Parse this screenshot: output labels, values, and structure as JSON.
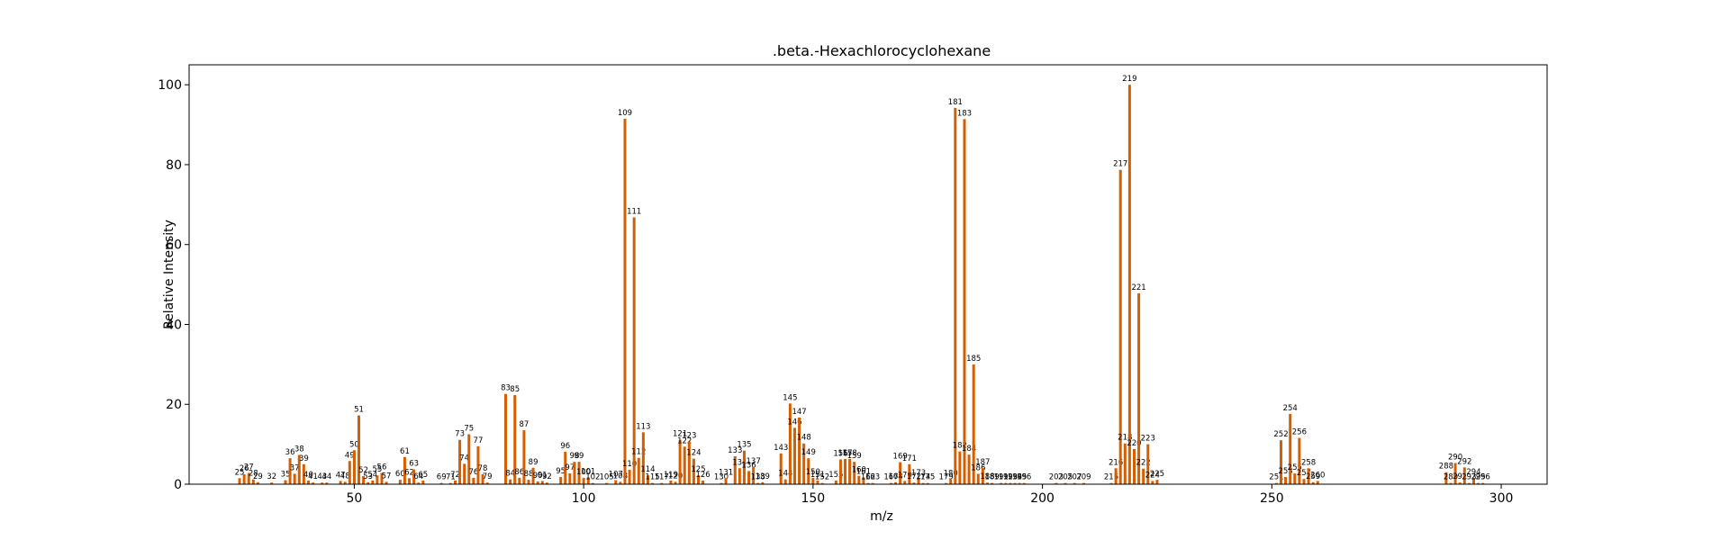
{
  "chart_data": {
    "type": "bar",
    "title": ".beta.-Hexachlorocyclohexane",
    "xlabel": "m/z",
    "ylabel": "Relative Intensity",
    "xlim": [
      14,
      310
    ],
    "ylim": [
      0,
      105
    ],
    "xticks": [
      50,
      100,
      150,
      200,
      250,
      300
    ],
    "yticks": [
      0,
      20,
      40,
      60,
      80,
      100
    ],
    "grid": false,
    "color": "#d55e00",
    "peaks": [
      {
        "mz": 25,
        "intensity": 1.5,
        "label": "25"
      },
      {
        "mz": 26,
        "intensity": 2.5,
        "label": "26"
      },
      {
        "mz": 27,
        "intensity": 2.8,
        "label": "27"
      },
      {
        "mz": 28,
        "intensity": 1.2,
        "label": "28"
      },
      {
        "mz": 29,
        "intensity": 0.5,
        "label": "29"
      },
      {
        "mz": 32,
        "intensity": 0.4,
        "label": "32"
      },
      {
        "mz": 35,
        "intensity": 1.0,
        "label": "35"
      },
      {
        "mz": 36,
        "intensity": 6.5,
        "label": "36"
      },
      {
        "mz": 37,
        "intensity": 2.6,
        "label": "37"
      },
      {
        "mz": 38,
        "intensity": 7.3,
        "label": "38"
      },
      {
        "mz": 39,
        "intensity": 5.0,
        "label": "39"
      },
      {
        "mz": 40,
        "intensity": 0.9,
        "label": "40"
      },
      {
        "mz": 41,
        "intensity": 0.4,
        "label": "41"
      },
      {
        "mz": 43,
        "intensity": 0.4,
        "label": "43"
      },
      {
        "mz": 44,
        "intensity": 0.4,
        "label": "44"
      },
      {
        "mz": 47,
        "intensity": 0.8,
        "label": "47"
      },
      {
        "mz": 48,
        "intensity": 0.6,
        "label": "48"
      },
      {
        "mz": 49,
        "intensity": 5.8,
        "label": "49"
      },
      {
        "mz": 50,
        "intensity": 8.5,
        "label": "50"
      },
      {
        "mz": 51,
        "intensity": 17.2,
        "label": "51"
      },
      {
        "mz": 52,
        "intensity": 2.0,
        "label": "52"
      },
      {
        "mz": 53,
        "intensity": 0.5,
        "label": "53"
      },
      {
        "mz": 54,
        "intensity": 0.9,
        "label": "54"
      },
      {
        "mz": 55,
        "intensity": 2.2,
        "label": "55"
      },
      {
        "mz": 56,
        "intensity": 2.8,
        "label": "56"
      },
      {
        "mz": 57,
        "intensity": 0.6,
        "label": "57"
      },
      {
        "mz": 60,
        "intensity": 1.1,
        "label": "60"
      },
      {
        "mz": 61,
        "intensity": 6.8,
        "label": "61"
      },
      {
        "mz": 62,
        "intensity": 1.5,
        "label": "62"
      },
      {
        "mz": 63,
        "intensity": 3.7,
        "label": "63"
      },
      {
        "mz": 64,
        "intensity": 0.4,
        "label": "64"
      },
      {
        "mz": 65,
        "intensity": 0.9,
        "label": "65"
      },
      {
        "mz": 69,
        "intensity": 0.3,
        "label": "69"
      },
      {
        "mz": 71,
        "intensity": 0.3,
        "label": "71"
      },
      {
        "mz": 72,
        "intensity": 0.9,
        "label": "72"
      },
      {
        "mz": 73,
        "intensity": 11.1,
        "label": "73"
      },
      {
        "mz": 74,
        "intensity": 5.1,
        "label": "74"
      },
      {
        "mz": 75,
        "intensity": 12.5,
        "label": "75"
      },
      {
        "mz": 76,
        "intensity": 1.6,
        "label": "76"
      },
      {
        "mz": 77,
        "intensity": 9.5,
        "label": "77"
      },
      {
        "mz": 78,
        "intensity": 2.5,
        "label": "78"
      },
      {
        "mz": 79,
        "intensity": 0.4,
        "label": "79"
      },
      {
        "mz": 83,
        "intensity": 22.6,
        "label": "83"
      },
      {
        "mz": 84,
        "intensity": 1.2,
        "label": "84"
      },
      {
        "mz": 85,
        "intensity": 22.3,
        "label": "85"
      },
      {
        "mz": 86,
        "intensity": 1.6,
        "label": "86"
      },
      {
        "mz": 87,
        "intensity": 13.5,
        "label": "87"
      },
      {
        "mz": 88,
        "intensity": 1.1,
        "label": "88"
      },
      {
        "mz": 89,
        "intensity": 4.1,
        "label": "89"
      },
      {
        "mz": 90,
        "intensity": 0.7,
        "label": "90"
      },
      {
        "mz": 91,
        "intensity": 0.8,
        "label": "91"
      },
      {
        "mz": 92,
        "intensity": 0.4,
        "label": "92"
      },
      {
        "mz": 95,
        "intensity": 1.8,
        "label": "95"
      },
      {
        "mz": 96,
        "intensity": 8.1,
        "label": "96"
      },
      {
        "mz": 97,
        "intensity": 2.7,
        "label": "97"
      },
      {
        "mz": 98,
        "intensity": 5.6,
        "label": "98"
      },
      {
        "mz": 99,
        "intensity": 5.6,
        "label": "99"
      },
      {
        "mz": 100,
        "intensity": 1.6,
        "label": "100"
      },
      {
        "mz": 101,
        "intensity": 1.7,
        "label": "101"
      },
      {
        "mz": 102,
        "intensity": 0.3,
        "label": "102"
      },
      {
        "mz": 105,
        "intensity": 0.3,
        "label": "105"
      },
      {
        "mz": 107,
        "intensity": 1.0,
        "label": "107"
      },
      {
        "mz": 108,
        "intensity": 0.6,
        "label": "108"
      },
      {
        "mz": 109,
        "intensity": 91.5,
        "label": "109"
      },
      {
        "mz": 110,
        "intensity": 3.6,
        "label": "110"
      },
      {
        "mz": 111,
        "intensity": 66.8,
        "label": "111"
      },
      {
        "mz": 112,
        "intensity": 6.6,
        "label": "112"
      },
      {
        "mz": 113,
        "intensity": 13.0,
        "label": "113"
      },
      {
        "mz": 114,
        "intensity": 2.2,
        "label": "114"
      },
      {
        "mz": 115,
        "intensity": 0.3,
        "label": "115"
      },
      {
        "mz": 117,
        "intensity": 0.3,
        "label": "117"
      },
      {
        "mz": 119,
        "intensity": 0.9,
        "label": "119"
      },
      {
        "mz": 120,
        "intensity": 0.6,
        "label": "120"
      },
      {
        "mz": 121,
        "intensity": 11.1,
        "label": "121"
      },
      {
        "mz": 122,
        "intensity": 9.4,
        "label": "122"
      },
      {
        "mz": 123,
        "intensity": 10.7,
        "label": "123"
      },
      {
        "mz": 124,
        "intensity": 6.4,
        "label": "124"
      },
      {
        "mz": 125,
        "intensity": 2.2,
        "label": "125"
      },
      {
        "mz": 126,
        "intensity": 0.9,
        "label": "126"
      },
      {
        "mz": 130,
        "intensity": 0.3,
        "label": "130"
      },
      {
        "mz": 131,
        "intensity": 1.5,
        "label": "131"
      },
      {
        "mz": 133,
        "intensity": 7.0,
        "label": "133"
      },
      {
        "mz": 134,
        "intensity": 4.0,
        "label": "134"
      },
      {
        "mz": 135,
        "intensity": 8.4,
        "label": "135"
      },
      {
        "mz": 136,
        "intensity": 3.3,
        "label": "136"
      },
      {
        "mz": 137,
        "intensity": 4.3,
        "label": "137"
      },
      {
        "mz": 138,
        "intensity": 0.3,
        "label": "138"
      },
      {
        "mz": 139,
        "intensity": 0.5,
        "label": "139"
      },
      {
        "mz": 143,
        "intensity": 7.7,
        "label": "143"
      },
      {
        "mz": 144,
        "intensity": 1.2,
        "label": "144"
      },
      {
        "mz": 145,
        "intensity": 20.2,
        "label": "145"
      },
      {
        "mz": 146,
        "intensity": 14.1,
        "label": "146"
      },
      {
        "mz": 147,
        "intensity": 16.7,
        "label": "147"
      },
      {
        "mz": 148,
        "intensity": 10.2,
        "label": "148"
      },
      {
        "mz": 149,
        "intensity": 6.5,
        "label": "149"
      },
      {
        "mz": 150,
        "intensity": 1.6,
        "label": "150"
      },
      {
        "mz": 151,
        "intensity": 0.9,
        "label": "151"
      },
      {
        "mz": 152,
        "intensity": 0.3,
        "label": "152"
      },
      {
        "mz": 155,
        "intensity": 0.9,
        "label": "155"
      },
      {
        "mz": 156,
        "intensity": 6.2,
        "label": "156"
      },
      {
        "mz": 157,
        "intensity": 6.3,
        "label": "157"
      },
      {
        "mz": 158,
        "intensity": 6.3,
        "label": "158"
      },
      {
        "mz": 159,
        "intensity": 5.6,
        "label": "159"
      },
      {
        "mz": 160,
        "intensity": 2.1,
        "label": "160"
      },
      {
        "mz": 161,
        "intensity": 1.7,
        "label": "161"
      },
      {
        "mz": 162,
        "intensity": 0.3,
        "label": "162"
      },
      {
        "mz": 163,
        "intensity": 0.3,
        "label": "163"
      },
      {
        "mz": 167,
        "intensity": 0.3,
        "label": "167"
      },
      {
        "mz": 168,
        "intensity": 0.5,
        "label": "168"
      },
      {
        "mz": 169,
        "intensity": 5.5,
        "label": "169"
      },
      {
        "mz": 170,
        "intensity": 0.8,
        "label": "170"
      },
      {
        "mz": 171,
        "intensity": 5.0,
        "label": "171"
      },
      {
        "mz": 172,
        "intensity": 0.4,
        "label": "172"
      },
      {
        "mz": 173,
        "intensity": 1.3,
        "label": "173"
      },
      {
        "mz": 174,
        "intensity": 0.3,
        "label": "174"
      },
      {
        "mz": 175,
        "intensity": 0.3,
        "label": "175"
      },
      {
        "mz": 179,
        "intensity": 0.3,
        "label": "179"
      },
      {
        "mz": 180,
        "intensity": 1.2,
        "label": "180"
      },
      {
        "mz": 181,
        "intensity": 94.2,
        "label": "181"
      },
      {
        "mz": 182,
        "intensity": 8.2,
        "label": "182"
      },
      {
        "mz": 183,
        "intensity": 91.4,
        "label": "183"
      },
      {
        "mz": 184,
        "intensity": 7.4,
        "label": "184"
      },
      {
        "mz": 185,
        "intensity": 30.0,
        "label": "185"
      },
      {
        "mz": 186,
        "intensity": 2.6,
        "label": "186"
      },
      {
        "mz": 187,
        "intensity": 4.1,
        "label": "187"
      },
      {
        "mz": 188,
        "intensity": 0.4,
        "label": "188"
      },
      {
        "mz": 189,
        "intensity": 0.3,
        "label": "189"
      },
      {
        "mz": 191,
        "intensity": 0.3,
        "label": "191"
      },
      {
        "mz": 192,
        "intensity": 0.3,
        "label": "192"
      },
      {
        "mz": 193,
        "intensity": 0.3,
        "label": "193"
      },
      {
        "mz": 194,
        "intensity": 0.3,
        "label": "194"
      },
      {
        "mz": 195,
        "intensity": 0.3,
        "label": "195"
      },
      {
        "mz": 196,
        "intensity": 0.3,
        "label": "196"
      },
      {
        "mz": 203,
        "intensity": 0.3,
        "label": "203"
      },
      {
        "mz": 205,
        "intensity": 0.3,
        "label": "205"
      },
      {
        "mz": 207,
        "intensity": 0.3,
        "label": "207"
      },
      {
        "mz": 209,
        "intensity": 0.3,
        "label": "209"
      },
      {
        "mz": 215,
        "intensity": 0.3,
        "label": "215"
      },
      {
        "mz": 216,
        "intensity": 4.0,
        "label": "216"
      },
      {
        "mz": 217,
        "intensity": 78.7,
        "label": "217"
      },
      {
        "mz": 218,
        "intensity": 10.2,
        "label": "218"
      },
      {
        "mz": 219,
        "intensity": 100.0,
        "label": "219"
      },
      {
        "mz": 220,
        "intensity": 8.8,
        "label": "220"
      },
      {
        "mz": 221,
        "intensity": 47.8,
        "label": "221"
      },
      {
        "mz": 222,
        "intensity": 3.9,
        "label": "222"
      },
      {
        "mz": 223,
        "intensity": 10.0,
        "label": "223"
      },
      {
        "mz": 224,
        "intensity": 0.8,
        "label": "224"
      },
      {
        "mz": 225,
        "intensity": 1.1,
        "label": "225"
      },
      {
        "mz": 251,
        "intensity": 0.3,
        "label": "251"
      },
      {
        "mz": 252,
        "intensity": 11.0,
        "label": "252"
      },
      {
        "mz": 253,
        "intensity": 1.8,
        "label": "253"
      },
      {
        "mz": 254,
        "intensity": 17.6,
        "label": "254"
      },
      {
        "mz": 255,
        "intensity": 2.7,
        "label": "255"
      },
      {
        "mz": 256,
        "intensity": 11.6,
        "label": "256"
      },
      {
        "mz": 257,
        "intensity": 1.3,
        "label": "257"
      },
      {
        "mz": 258,
        "intensity": 4.0,
        "label": "258"
      },
      {
        "mz": 259,
        "intensity": 0.5,
        "label": "259"
      },
      {
        "mz": 260,
        "intensity": 0.8,
        "label": "260"
      },
      {
        "mz": 288,
        "intensity": 3.0,
        "label": "288"
      },
      {
        "mz": 289,
        "intensity": 0.3,
        "label": "289"
      },
      {
        "mz": 290,
        "intensity": 5.3,
        "label": "290"
      },
      {
        "mz": 291,
        "intensity": 0.4,
        "label": "291"
      },
      {
        "mz": 292,
        "intensity": 4.2,
        "label": "292"
      },
      {
        "mz": 293,
        "intensity": 0.3,
        "label": "293"
      },
      {
        "mz": 294,
        "intensity": 1.6,
        "label": "294"
      },
      {
        "mz": 295,
        "intensity": 0.3,
        "label": "295"
      },
      {
        "mz": 296,
        "intensity": 0.3,
        "label": "296"
      }
    ]
  }
}
